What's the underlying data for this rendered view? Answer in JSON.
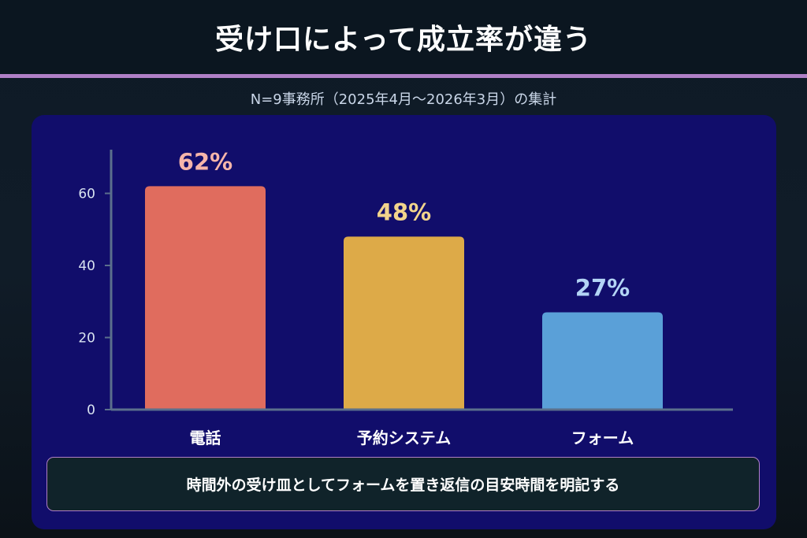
{
  "header": {
    "title": "受け口によって成立率が違う",
    "subtitle": "N=9事務所（2025年4月〜2026年3月）の集計"
  },
  "chart_data": {
    "type": "bar",
    "categories": [
      "電話",
      "予約システム",
      "フォーム"
    ],
    "values": [
      62,
      48,
      27
    ],
    "data_labels": [
      "62%",
      "48%",
      "27%"
    ],
    "colors": [
      "#e06c5e",
      "#ddaa48",
      "#5aa0d8"
    ],
    "label_colors": [
      "#f5b5aa",
      "#f2d48c",
      "#b3d4f5"
    ],
    "yticks": [
      0,
      20,
      40,
      60
    ],
    "ylim": [
      0,
      72
    ],
    "grid": false
  },
  "note": {
    "text": "時間外の受け皿としてフォームを置き返信の目安時間を明記する"
  },
  "colors": {
    "panel": "#110d6b",
    "accent_rule": "#b07fc6",
    "axis": "#5b6f8c"
  }
}
